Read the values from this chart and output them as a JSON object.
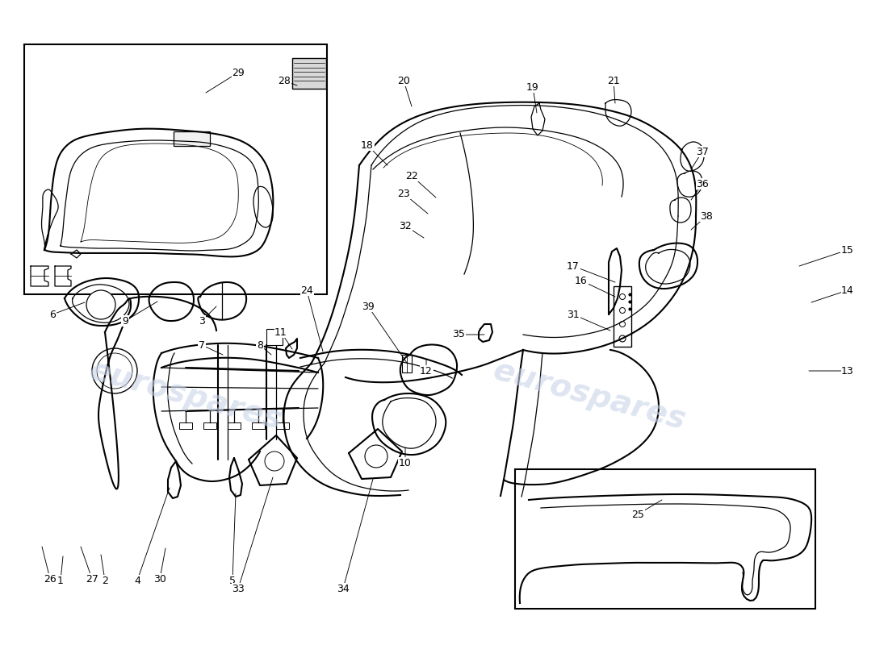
{
  "background_color": "#ffffff",
  "line_color": "#000000",
  "watermark_color": "#c8d4e8",
  "watermark_text": "eurospares",
  "fig_width": 11.0,
  "fig_height": 8.0,
  "dpi": 100
}
